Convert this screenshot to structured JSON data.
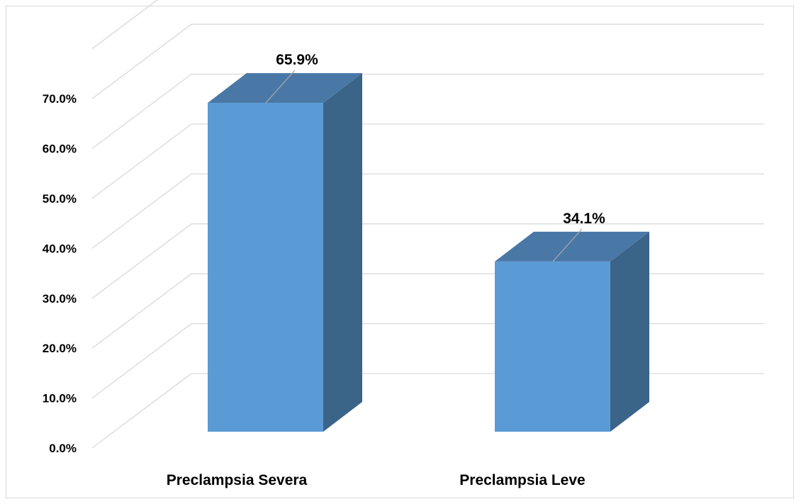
{
  "chart_data": {
    "type": "bar",
    "categories": [
      "Preclampsia Severa",
      "Preclampsia Leve"
    ],
    "values": [
      65.9,
      34.1
    ],
    "data_labels": [
      "65.9%",
      "34.1%"
    ],
    "y_ticks": [
      "0.0%",
      "10.0%",
      "20.0%",
      "30.0%",
      "40.0%",
      "50.0%",
      "60.0%",
      "70.0%"
    ],
    "ylim": [
      0,
      70
    ],
    "grid": true,
    "three_d": true,
    "legend": "none",
    "colors": {
      "front": "#5b9bd5",
      "top": "#4a78a6",
      "side": "#3a6488",
      "grid": "#d9d9d9",
      "leader": "#a6a6a6"
    }
  }
}
